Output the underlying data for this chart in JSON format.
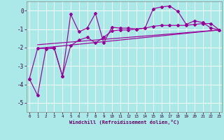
{
  "xlabel": "Windchill (Refroidissement éolien,°C)",
  "background_color": "#abe8e8",
  "grid_color": "#ffffff",
  "line_color": "#990099",
  "xlim": [
    -0.3,
    23.3
  ],
  "ylim": [
    -5.5,
    0.5
  ],
  "yticks": [
    0,
    -1,
    -2,
    -3,
    -4,
    -5
  ],
  "xticks": [
    0,
    1,
    2,
    3,
    4,
    5,
    6,
    7,
    8,
    9,
    10,
    11,
    12,
    13,
    14,
    15,
    16,
    17,
    18,
    19,
    20,
    21,
    22,
    23
  ],
  "jagged_x": [
    0,
    1,
    2,
    3,
    4,
    5,
    6,
    7,
    8,
    9,
    10,
    11,
    12,
    13,
    14,
    15,
    16,
    17,
    18,
    19,
    20,
    21,
    22,
    23
  ],
  "jagged_y": [
    -3.7,
    -4.6,
    -2.1,
    -2.0,
    -3.55,
    -0.2,
    -1.15,
    -0.95,
    -0.15,
    -1.75,
    -0.9,
    -0.95,
    -0.95,
    -1.0,
    -0.95,
    0.1,
    0.2,
    0.25,
    -0.05,
    -0.75,
    -0.55,
    -0.65,
    -0.95,
    -1.05
  ],
  "smooth_x": [
    0,
    1,
    2,
    3,
    4,
    5,
    6,
    7,
    8,
    9,
    10,
    11,
    12,
    13,
    14,
    15,
    16,
    17,
    18,
    19,
    20,
    21,
    22,
    23
  ],
  "smooth_y": [
    -3.7,
    -2.05,
    -2.05,
    -2.05,
    -3.55,
    -1.9,
    -1.6,
    -1.45,
    -1.75,
    -1.45,
    -1.1,
    -1.05,
    -1.05,
    -1.0,
    -0.95,
    -0.85,
    -0.8,
    -0.8,
    -0.8,
    -0.8,
    -0.75,
    -0.7,
    -0.7,
    -1.05
  ],
  "trend1_x": [
    1,
    23
  ],
  "trend1_y": [
    -2.05,
    -1.05
  ],
  "trend2_x": [
    1,
    23
  ],
  "trend2_y": [
    -1.85,
    -1.05
  ]
}
